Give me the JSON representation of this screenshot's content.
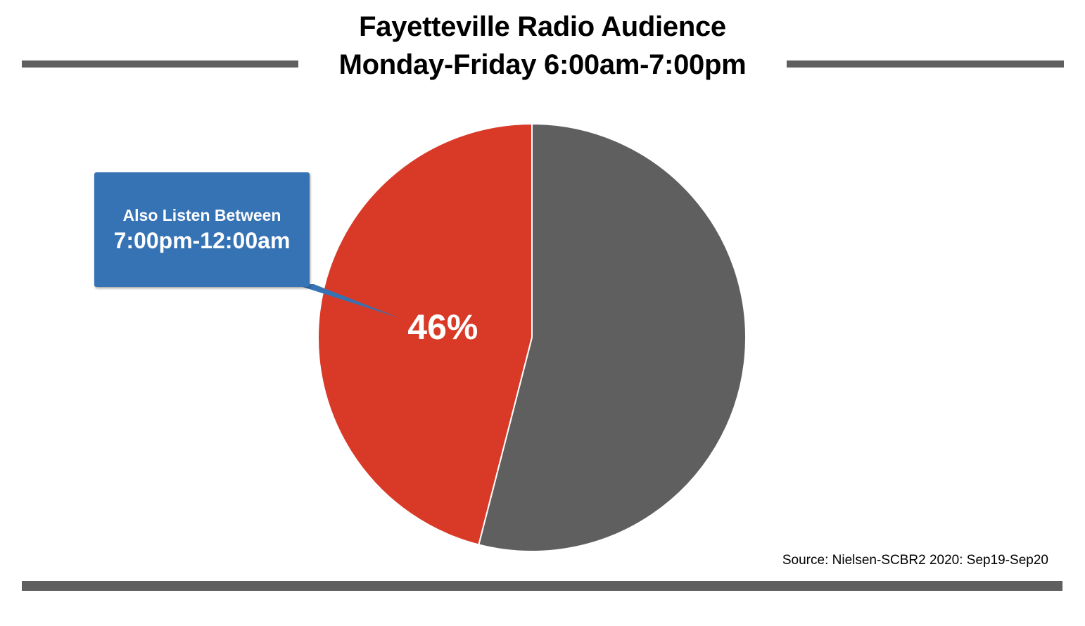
{
  "chart_data": {
    "type": "pie",
    "title": "Fayetteville Radio Audience",
    "subtitle": "Monday-Friday 6:00am-7:00pm",
    "slices": [
      {
        "label": "Also Listen Between 7:00pm-12:00am",
        "value": 46,
        "value_label": "46%",
        "color": "#d93a27"
      },
      {
        "label": "",
        "value": 54,
        "value_label": "",
        "color": "#5f5f5f"
      }
    ],
    "annotation": {
      "line1": "Also Listen Between",
      "line2": "7:00pm-12:00am",
      "color": "#3673b4",
      "points_to": "slice-0"
    },
    "legend": "none",
    "source": "Source: Nielsen-SCBR2 2020: Sep19-Sep20"
  },
  "colors": {
    "rule": "#5f5f5f",
    "slice_edge": "#ffffff",
    "value_label": "#ffffff"
  }
}
